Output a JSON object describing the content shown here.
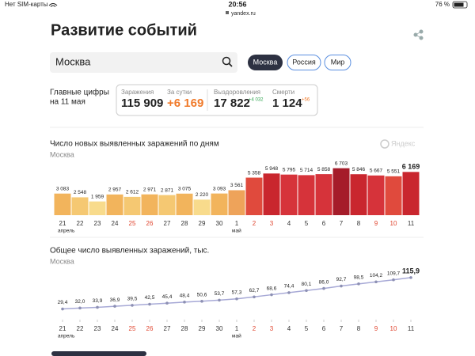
{
  "status_bar": {
    "carrier": "Нет SIM-карты",
    "time": "20:56",
    "battery": "76 %",
    "url": "yandex.ru"
  },
  "header": {
    "title": "Развитие событий"
  },
  "search": {
    "value": "Москва",
    "tabs": [
      "Москва",
      "Россия",
      "Мир"
    ]
  },
  "summary": {
    "title": "Главные цифры",
    "date": "на 11 мая",
    "stats": [
      {
        "label": "Заражения",
        "value": "115 909"
      },
      {
        "label": "За сутки",
        "value": "+6 169"
      },
      {
        "label": "Выздоровления",
        "value": "17 822",
        "delta": "+4 032"
      },
      {
        "label": "Смерти",
        "value": "1 124",
        "delta": "+56"
      }
    ]
  },
  "chart_data": [
    {
      "type": "bar",
      "title": "Число новых выявленных заражений по дням",
      "subtitle": "Москва",
      "watermark": "Яндекс",
      "categories": [
        "21",
        "22",
        "23",
        "24",
        "25",
        "26",
        "27",
        "28",
        "29",
        "30",
        "1",
        "2",
        "3",
        "4",
        "5",
        "6",
        "7",
        "8",
        "9",
        "10",
        "11"
      ],
      "month_labels": [
        "апрель",
        null,
        null,
        null,
        null,
        null,
        null,
        null,
        null,
        null,
        "май",
        null,
        null,
        null,
        null,
        null,
        null,
        null,
        null,
        null,
        null
      ],
      "category_colors": [
        "#333",
        "#333",
        "#333",
        "#333",
        "#e0452f",
        "#e0452f",
        "#333",
        "#333",
        "#333",
        "#333",
        "#333",
        "#e0452f",
        "#e0452f",
        "#333",
        "#333",
        "#333",
        "#333",
        "#333",
        "#e0452f",
        "#e0452f",
        "#333"
      ],
      "values": [
        3083,
        2548,
        1959,
        2957,
        2612,
        2971,
        2871,
        3075,
        2220,
        3093,
        3561,
        5358,
        5948,
        5795,
        5714,
        5858,
        6703,
        5846,
        5667,
        5551,
        6169
      ],
      "value_labels": [
        "3 083",
        "2 548",
        "1 959",
        "2 957",
        "2 612",
        "2 971",
        "2 871",
        "3 075",
        "2 220",
        "3 093",
        "3 561",
        "5 358",
        "5 948",
        "5 795",
        "5 714",
        "5 858",
        "6 703",
        "5 846",
        "5 667",
        "5 551",
        "6 169"
      ],
      "colors": [
        "#f2b45c",
        "#f5c872",
        "#f8db8c",
        "#f2b45c",
        "#f5c872",
        "#f2b45c",
        "#f5c872",
        "#f2b45c",
        "#f8db8c",
        "#f2b45c",
        "#eea35a",
        "#e04a3d",
        "#c9262e",
        "#d6333a",
        "#d6333a",
        "#d6333a",
        "#a51c2a",
        "#c9262e",
        "#d6333a",
        "#e04a3d",
        "#c9262e"
      ],
      "ylim": [
        0,
        7000
      ]
    },
    {
      "type": "line",
      "title": "Общее число выявленных заражений, тыс.",
      "subtitle": "Москва",
      "categories": [
        "21",
        "22",
        "23",
        "24",
        "25",
        "26",
        "27",
        "28",
        "29",
        "30",
        "1",
        "2",
        "3",
        "4",
        "5",
        "6",
        "7",
        "8",
        "9",
        "10",
        "11"
      ],
      "month_labels": [
        "апрель",
        null,
        null,
        null,
        null,
        null,
        null,
        null,
        null,
        null,
        "май",
        null,
        null,
        null,
        null,
        null,
        null,
        null,
        null,
        null,
        null
      ],
      "category_colors": [
        "#333",
        "#333",
        "#333",
        "#333",
        "#e0452f",
        "#e0452f",
        "#333",
        "#333",
        "#333",
        "#333",
        "#333",
        "#e0452f",
        "#e0452f",
        "#333",
        "#333",
        "#333",
        "#333",
        "#333",
        "#e0452f",
        "#e0452f",
        "#333"
      ],
      "values": [
        29.4,
        32.0,
        33.9,
        36.9,
        39.5,
        42.5,
        45.4,
        48.4,
        50.6,
        53.7,
        57.3,
        62.7,
        68.6,
        74.4,
        80.1,
        86.0,
        92.7,
        98.5,
        104.2,
        109.7,
        115.9
      ],
      "value_labels": [
        "29,4",
        "32,0",
        "33,9",
        "36,9",
        "39,5",
        "42,5",
        "45,4",
        "48,4",
        "50,6",
        "53,7",
        "57,3",
        "62,7",
        "68,6",
        "74,4",
        "80,1",
        "86,0",
        "92,7",
        "98,5",
        "104,2",
        "109,7",
        "115,9"
      ],
      "color": "#a7a9d6",
      "point_color": "#8d90b3",
      "ylim": [
        0,
        120
      ]
    }
  ]
}
